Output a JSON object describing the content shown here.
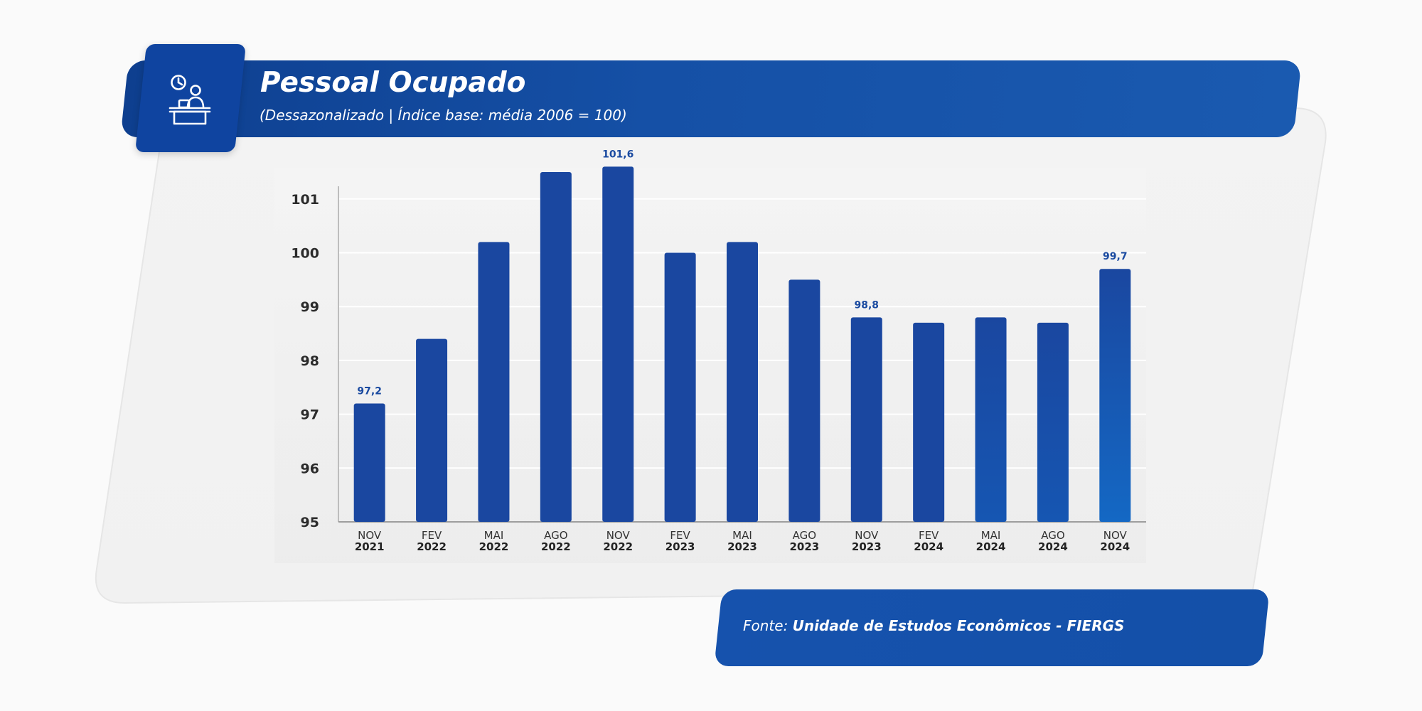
{
  "header": {
    "title": "Pessoal Ocupado",
    "subtitle": "(Dessazonalizado | Índice base: média 2006 = 100)",
    "icon": "worker-at-desk-icon"
  },
  "source": {
    "prefix": "Fonte: ",
    "name": "Unidade de Estudos Econômicos - FIERGS"
  },
  "colors": {
    "primary_blue": "#1a47a0",
    "highlight_blue": "#1468c4",
    "header_blue": "#1550a6"
  },
  "chart_data": {
    "type": "bar",
    "categories": [
      [
        "NOV",
        "2021"
      ],
      [
        "FEV",
        "2022"
      ],
      [
        "MAI",
        "2022"
      ],
      [
        "AGO",
        "2022"
      ],
      [
        "NOV",
        "2022"
      ],
      [
        "FEV",
        "2023"
      ],
      [
        "MAI",
        "2023"
      ],
      [
        "AGO",
        "2023"
      ],
      [
        "NOV",
        "2023"
      ],
      [
        "FEV",
        "2024"
      ],
      [
        "MAI",
        "2024"
      ],
      [
        "AGO",
        "2024"
      ],
      [
        "NOV",
        "2024"
      ]
    ],
    "values": [
      97.2,
      98.4,
      100.2,
      101.5,
      101.6,
      100.0,
      100.2,
      99.5,
      98.8,
      98.7,
      98.8,
      98.7,
      99.7
    ],
    "data_labels": [
      {
        "index": 0,
        "text": "97,2"
      },
      {
        "index": 4,
        "text": "101,6"
      },
      {
        "index": 8,
        "text": "98,8"
      },
      {
        "index": 12,
        "text": "99,7"
      }
    ],
    "yticks": [
      "95",
      "96",
      "97",
      "98",
      "99",
      "100",
      "101"
    ],
    "ylim": [
      95,
      101.6
    ],
    "grid": true,
    "xlabel": "",
    "ylabel": ""
  }
}
